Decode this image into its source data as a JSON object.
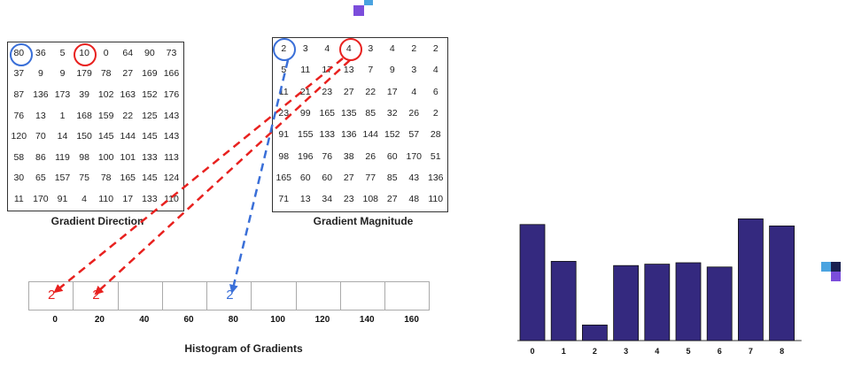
{
  "direction": {
    "caption": "Gradient Direction",
    "rows": [
      [
        "80",
        "36",
        "5",
        "10",
        "0",
        "64",
        "90",
        "73"
      ],
      [
        "37",
        "9",
        "9",
        "179",
        "78",
        "27",
        "169",
        "166"
      ],
      [
        "87",
        "136",
        "173",
        "39",
        "102",
        "163",
        "152",
        "176"
      ],
      [
        "76",
        "13",
        "1",
        "168",
        "159",
        "22",
        "125",
        "143"
      ],
      [
        "120",
        "70",
        "14",
        "150",
        "145",
        "144",
        "145",
        "143"
      ],
      [
        "58",
        "86",
        "119",
        "98",
        "100",
        "101",
        "133",
        "113"
      ],
      [
        "30",
        "65",
        "157",
        "75",
        "78",
        "165",
        "145",
        "124"
      ],
      [
        "11",
        "170",
        "91",
        "4",
        "110",
        "17",
        "133",
        "110"
      ]
    ]
  },
  "magnitude": {
    "caption": "Gradient Magnitude",
    "rows": [
      [
        "2",
        "3",
        "4",
        "4",
        "3",
        "4",
        "2",
        "2"
      ],
      [
        "5",
        "11",
        "17",
        "13",
        "7",
        "9",
        "3",
        "4"
      ],
      [
        "11",
        "21",
        "23",
        "27",
        "22",
        "17",
        "4",
        "6"
      ],
      [
        "23",
        "99",
        "165",
        "135",
        "85",
        "32",
        "26",
        "2"
      ],
      [
        "91",
        "155",
        "133",
        "136",
        "144",
        "152",
        "57",
        "28"
      ],
      [
        "98",
        "196",
        "76",
        "38",
        "26",
        "60",
        "170",
        "51"
      ],
      [
        "165",
        "60",
        "60",
        "27",
        "77",
        "85",
        "43",
        "136"
      ],
      [
        "71",
        "13",
        "34",
        "23",
        "108",
        "27",
        "48",
        "110"
      ]
    ]
  },
  "histogram": {
    "caption": "Histogram of Gradients",
    "bins": [
      "0",
      "20",
      "40",
      "60",
      "80",
      "100",
      "120",
      "140",
      "160"
    ],
    "entries": [
      {
        "bin": 0,
        "value": "2",
        "color": "#e8211f"
      },
      {
        "bin": 1,
        "value": "2",
        "color": "#e8211f"
      },
      {
        "bin": 4,
        "value": "2",
        "color": "#3a6fd8"
      }
    ]
  },
  "chart_data": {
    "type": "bar",
    "categories": [
      "0",
      "1",
      "2",
      "3",
      "4",
      "5",
      "6",
      "7",
      "8"
    ],
    "values": [
      0.82,
      0.56,
      0.11,
      0.53,
      0.54,
      0.55,
      0.52,
      0.86,
      0.81
    ],
    "color": "#34297f",
    "title": "",
    "xlabel": "",
    "ylabel": ""
  },
  "colors": {
    "red": "#e8211f",
    "blue": "#3a6fd8"
  }
}
